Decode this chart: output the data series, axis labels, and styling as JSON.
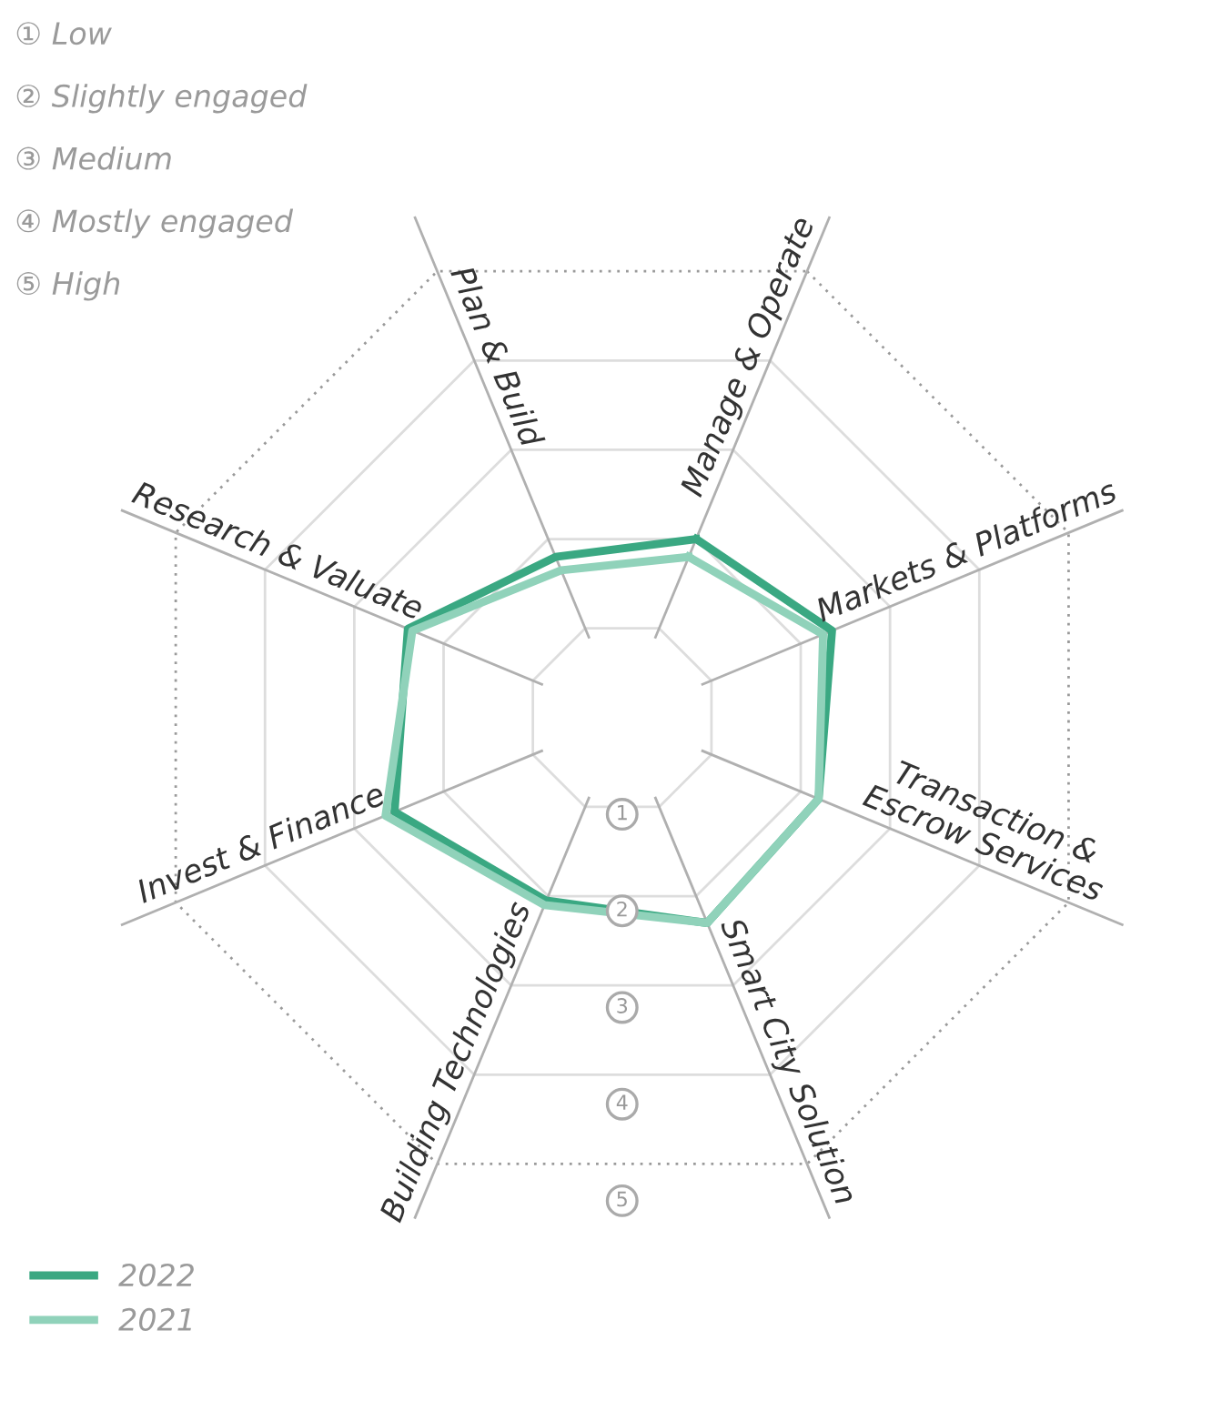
{
  "chart_data": {
    "type": "radar",
    "categories": [
      "Manage & Operate",
      "Markets & Platforms",
      "Transaction &\nEscrow Services",
      "Smart City Solution",
      "Building Technologies",
      "Invest & Finance",
      "Research & Valuate",
      "Plan & Build"
    ],
    "series": [
      {
        "name": "2022",
        "color": "#3aa882",
        "values": [
          2.0,
          2.35,
          2.2,
          2.3,
          2.05,
          2.55,
          2.4,
          1.8
        ]
      },
      {
        "name": "2021",
        "color": "#90d2ba",
        "values": [
          1.8,
          2.25,
          2.2,
          2.3,
          2.1,
          2.65,
          2.35,
          1.65
        ]
      }
    ],
    "ylim": [
      0,
      5
    ],
    "yticks": [
      1,
      2,
      3,
      4,
      5
    ],
    "grid": true,
    "legend": "bottom left",
    "annotations": [
      "① Low",
      "② Slightly engaged",
      "③ Medium",
      "④ Mostly engaged",
      "⑤ High"
    ]
  }
}
